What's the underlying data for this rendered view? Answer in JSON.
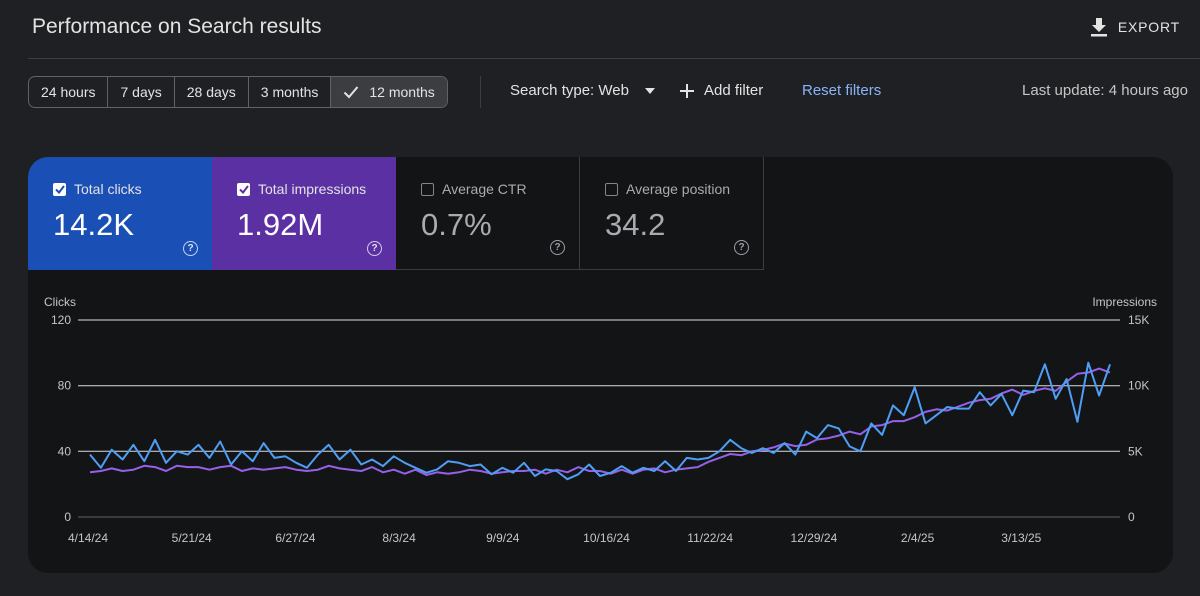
{
  "header": {
    "title": "Performance on Search results",
    "export_label": "EXPORT"
  },
  "filters": {
    "ranges": [
      "24 hours",
      "7 days",
      "28 days",
      "3 months",
      "12 months"
    ],
    "active_range": "12 months",
    "search_type": "Search type: Web",
    "add_filter": "Add filter",
    "reset": "Reset filters",
    "last_update": "Last update: 4 hours ago"
  },
  "metrics": {
    "clicks": {
      "label": "Total clicks",
      "value": "14.2K",
      "checked": true,
      "color": "#1a4fb5"
    },
    "impressions": {
      "label": "Total impressions",
      "value": "1.92M",
      "checked": true,
      "color": "#5b30a3"
    },
    "ctr": {
      "label": "Average CTR",
      "value": "0.7%",
      "checked": false
    },
    "position": {
      "label": "Average position",
      "value": "34.2",
      "checked": false
    }
  },
  "chart_data": {
    "type": "line",
    "left_axis_label": "Clicks",
    "right_axis_label": "Impressions",
    "left_ticks": [
      "120",
      "80",
      "40",
      "0"
    ],
    "right_ticks": [
      "15K",
      "10K",
      "5K",
      "0"
    ],
    "ylim_left": [
      0,
      120
    ],
    "ylim_right": [
      0,
      15000
    ],
    "x_ticks": [
      "4/14/24",
      "5/21/24",
      "6/27/24",
      "8/3/24",
      "9/9/24",
      "10/16/24",
      "11/22/24",
      "12/29/24",
      "2/4/25",
      "3/13/25"
    ],
    "grid": true,
    "series": [
      {
        "name": "Clicks",
        "axis": "left",
        "color": "#4e9ef5",
        "values": [
          38,
          30,
          41,
          35,
          44,
          34,
          47,
          33,
          40,
          38,
          44,
          36,
          46,
          32,
          40,
          34,
          45,
          36,
          37,
          33,
          30,
          38,
          44,
          35,
          41,
          32,
          35,
          31,
          37,
          33,
          30,
          27,
          29,
          34,
          33,
          31,
          32,
          26,
          30,
          27,
          33,
          25,
          29,
          28,
          23,
          26,
          32,
          25,
          27,
          31,
          27,
          30,
          28,
          34,
          28,
          36,
          35,
          36,
          40,
          47,
          42,
          39,
          42,
          39,
          45,
          38,
          52,
          48,
          56,
          54,
          43,
          40,
          57,
          50,
          68,
          62,
          79,
          57,
          62,
          67,
          66,
          66,
          76,
          68,
          75,
          62,
          77,
          76,
          93,
          72,
          84,
          58,
          94,
          74,
          93
        ]
      },
      {
        "name": "Impressions",
        "axis": "right",
        "color": "#9661e8",
        "values": [
          3400,
          3500,
          3700,
          3500,
          3600,
          3900,
          3800,
          3500,
          3900,
          3800,
          3800,
          3600,
          3800,
          3900,
          3500,
          3700,
          3600,
          3700,
          3800,
          3600,
          3500,
          3600,
          3900,
          3700,
          3600,
          3500,
          3800,
          3400,
          3600,
          3300,
          3600,
          3200,
          3400,
          3300,
          3400,
          3600,
          3500,
          3300,
          3400,
          3500,
          3500,
          3600,
          3300,
          3600,
          3400,
          3800,
          3500,
          3500,
          3300,
          3600,
          3300,
          3600,
          3700,
          3400,
          3600,
          3700,
          3800,
          4200,
          4500,
          4800,
          4700,
          5000,
          5100,
          5300,
          5600,
          5400,
          5500,
          5900,
          6000,
          6200,
          6500,
          6300,
          6900,
          7000,
          7300,
          7300,
          7600,
          8000,
          8200,
          8100,
          8400,
          8700,
          8900,
          9000,
          9400,
          9700,
          9300,
          9600,
          9800,
          9600,
          10300,
          10900,
          11000,
          11300,
          11000
        ]
      }
    ]
  }
}
